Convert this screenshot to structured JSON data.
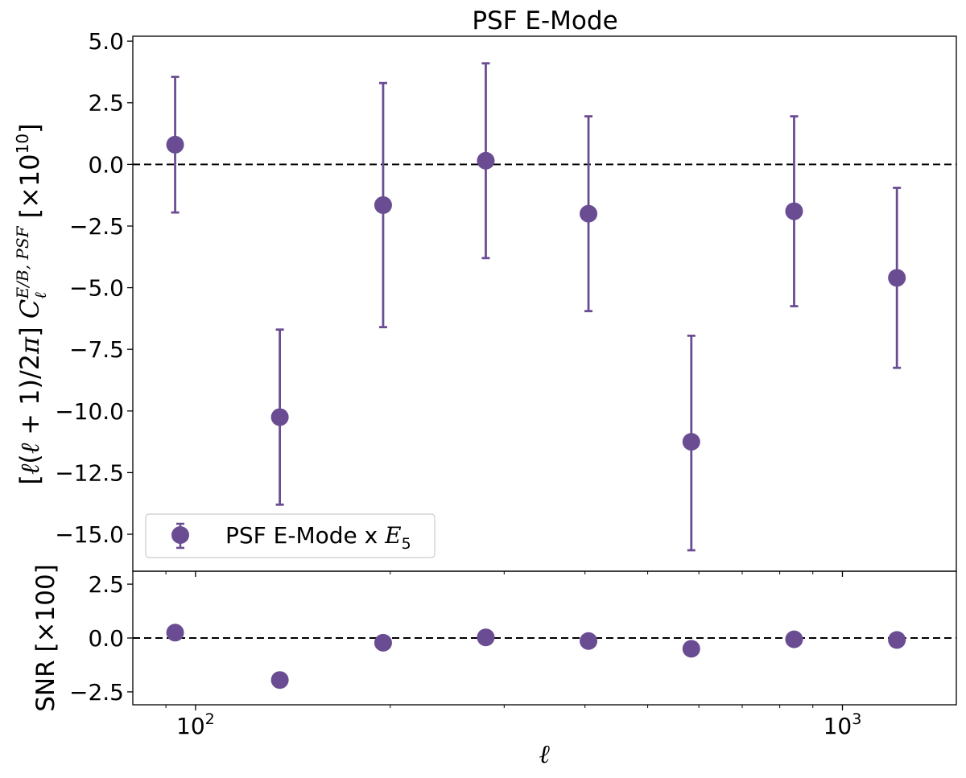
{
  "chart_data": [
    {
      "panel": "main",
      "type": "scatter",
      "title": "PSF E-Mode",
      "ylabel": "[ℓ(ℓ + 1)/2π] C_ℓ^{E/B, PSF} [×10^{10}]",
      "yticks": [
        "5.0",
        "2.5",
        "0.0",
        "−2.5",
        "−5.0",
        "−7.5",
        "−10.0",
        "−12.5",
        "−15.0"
      ],
      "ylim": [
        -16.5,
        5.2
      ],
      "xscale": "log",
      "xlim": [
        80,
        1500
      ],
      "reference_line": {
        "y": 0,
        "style": "dashed",
        "color": "#000000"
      },
      "color": "#6a4c93",
      "legend": {
        "label": "PSF E-Mode x E_5",
        "location": "lower-left"
      },
      "series": [
        {
          "name": "PSF E-Mode x E_5",
          "x": [
            93,
            135,
            195,
            281,
            405,
            584,
            842,
            1214
          ],
          "y": [
            0.8,
            -10.25,
            -1.65,
            0.15,
            -2.0,
            -11.25,
            -1.9,
            -4.6
          ],
          "err_lo": [
            2.75,
            3.55,
            4.95,
            3.95,
            3.95,
            4.4,
            3.85,
            3.65
          ],
          "err_hi": [
            2.75,
            3.55,
            4.95,
            3.95,
            3.95,
            4.3,
            3.85,
            3.65
          ]
        }
      ]
    },
    {
      "panel": "snr",
      "type": "scatter",
      "xlabel": "ℓ",
      "ylabel": "SNR [×100]",
      "yticks": [
        "2.5",
        "0.0",
        "−2.5"
      ],
      "ylim": [
        -3.1,
        3.1
      ],
      "xscale": "log",
      "xlim": [
        80,
        1500
      ],
      "xticks": [
        {
          "value": 100,
          "label": "10",
          "exp": "2"
        },
        {
          "value": 1000,
          "label": "10",
          "exp": "3"
        }
      ],
      "reference_line": {
        "y": 0,
        "style": "dashed",
        "color": "#000000"
      },
      "color": "#6a4c93",
      "series": [
        {
          "x": [
            93,
            135,
            195,
            281,
            405,
            584,
            842,
            1214
          ],
          "y": [
            0.25,
            -1.95,
            -0.22,
            0.03,
            -0.14,
            -0.5,
            -0.06,
            -0.09
          ]
        }
      ]
    }
  ]
}
